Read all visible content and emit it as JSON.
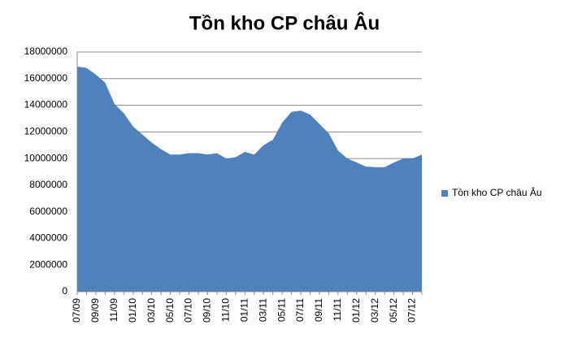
{
  "chart_data": {
    "type": "area",
    "title": "Tồn kho CP châu Âu",
    "categories": [
      "07/09",
      null,
      "09/09",
      null,
      "11/09",
      null,
      "01/10",
      null,
      "03/10",
      null,
      "05/10",
      null,
      "07/10",
      null,
      "09/10",
      null,
      "11/10",
      null,
      "01/11",
      null,
      "03/11",
      null,
      "05/11",
      null,
      "07/11",
      null,
      "09/11",
      null,
      "11/11",
      null,
      "01/12",
      null,
      "03/12",
      null,
      "05/12",
      null,
      "07/12",
      null
    ],
    "series": [
      {
        "name": "Tồn kho CP châu Âu",
        "color": "#4f81bd",
        "values": [
          16900000,
          16800000,
          16300000,
          15700000,
          14100000,
          13400000,
          12400000,
          11800000,
          11200000,
          10700000,
          10300000,
          10300000,
          10400000,
          10400000,
          10300000,
          10400000,
          10000000,
          10100000,
          10500000,
          10300000,
          11000000,
          11400000,
          12700000,
          13500000,
          13600000,
          13300000,
          12600000,
          11900000,
          10600000,
          10000000,
          9700000,
          9400000,
          9350000,
          9350000,
          9700000,
          10000000,
          10000000,
          10300000
        ]
      }
    ],
    "ylim": [
      0,
      18000000
    ],
    "yticks": [
      0,
      2000000,
      4000000,
      6000000,
      8000000,
      10000000,
      12000000,
      14000000,
      16000000,
      18000000
    ],
    "grid": true,
    "legend": "right"
  }
}
